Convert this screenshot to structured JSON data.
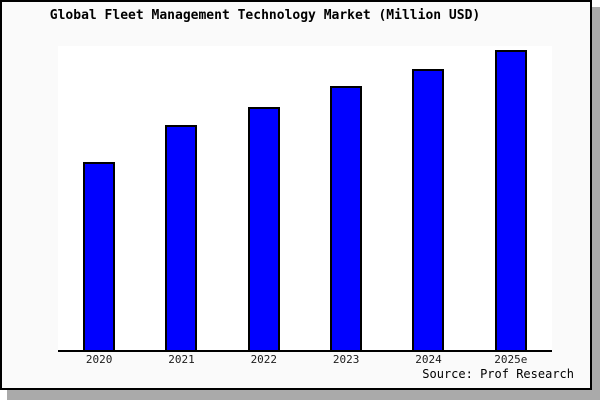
{
  "chart_data": {
    "type": "bar",
    "title": "Global Fleet Management Technology Market (Million USD)",
    "categories": [
      "2020",
      "2021",
      "2022",
      "2023",
      "2024",
      "2025e"
    ],
    "values": [
      62.7,
      75.0,
      81.3,
      88.0,
      93.7,
      100.0
    ],
    "values_note": "y-axis has no tick labels; values estimated from bar heights, normalized to 2025e = 100",
    "xlabel": "",
    "ylabel": "",
    "ylim": [
      0,
      101.5
    ],
    "grid": false,
    "legend": false,
    "bar_fill": "#0000ff",
    "bar_border": "#000000"
  },
  "footer": {
    "source": "Source: Prof Research"
  },
  "colors": {
    "card_background": "#fafafa",
    "plot_background": "#ffffff",
    "shadow": "#aaaaaa",
    "frame_border": "#000000"
  }
}
